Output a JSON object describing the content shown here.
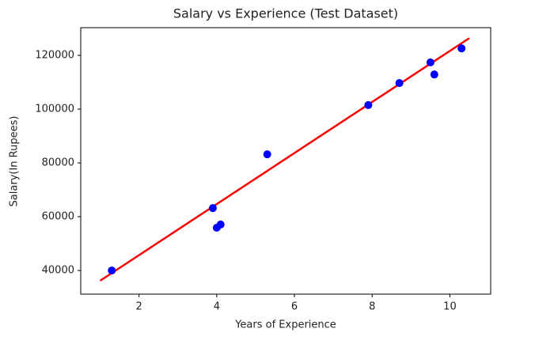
{
  "chart_data": {
    "type": "scatter",
    "title": "Salary vs Experience (Test Dataset)",
    "x_label": "Years of Experience",
    "y_label": "Salary(In Rupees)",
    "x": [
      1.3,
      3.9,
      4.0,
      4.1,
      5.3,
      7.9,
      8.7,
      9.5,
      9.6,
      10.3
    ],
    "values": [
      40000,
      63200,
      55900,
      57100,
      83200,
      101500,
      109700,
      117400,
      112900,
      122600
    ],
    "color": "#0000ff",
    "fit_line": {
      "x": [
        1.0,
        10.5
      ],
      "values": [
        36200,
        126400
      ],
      "color": "#ff0000"
    },
    "xlim": [
      0.5,
      11.05
    ],
    "ylim": [
      31200,
      130300
    ],
    "xticks": [
      2,
      4,
      6,
      8,
      10
    ],
    "yticks": [
      40000,
      60000,
      80000,
      100000,
      120000
    ]
  }
}
